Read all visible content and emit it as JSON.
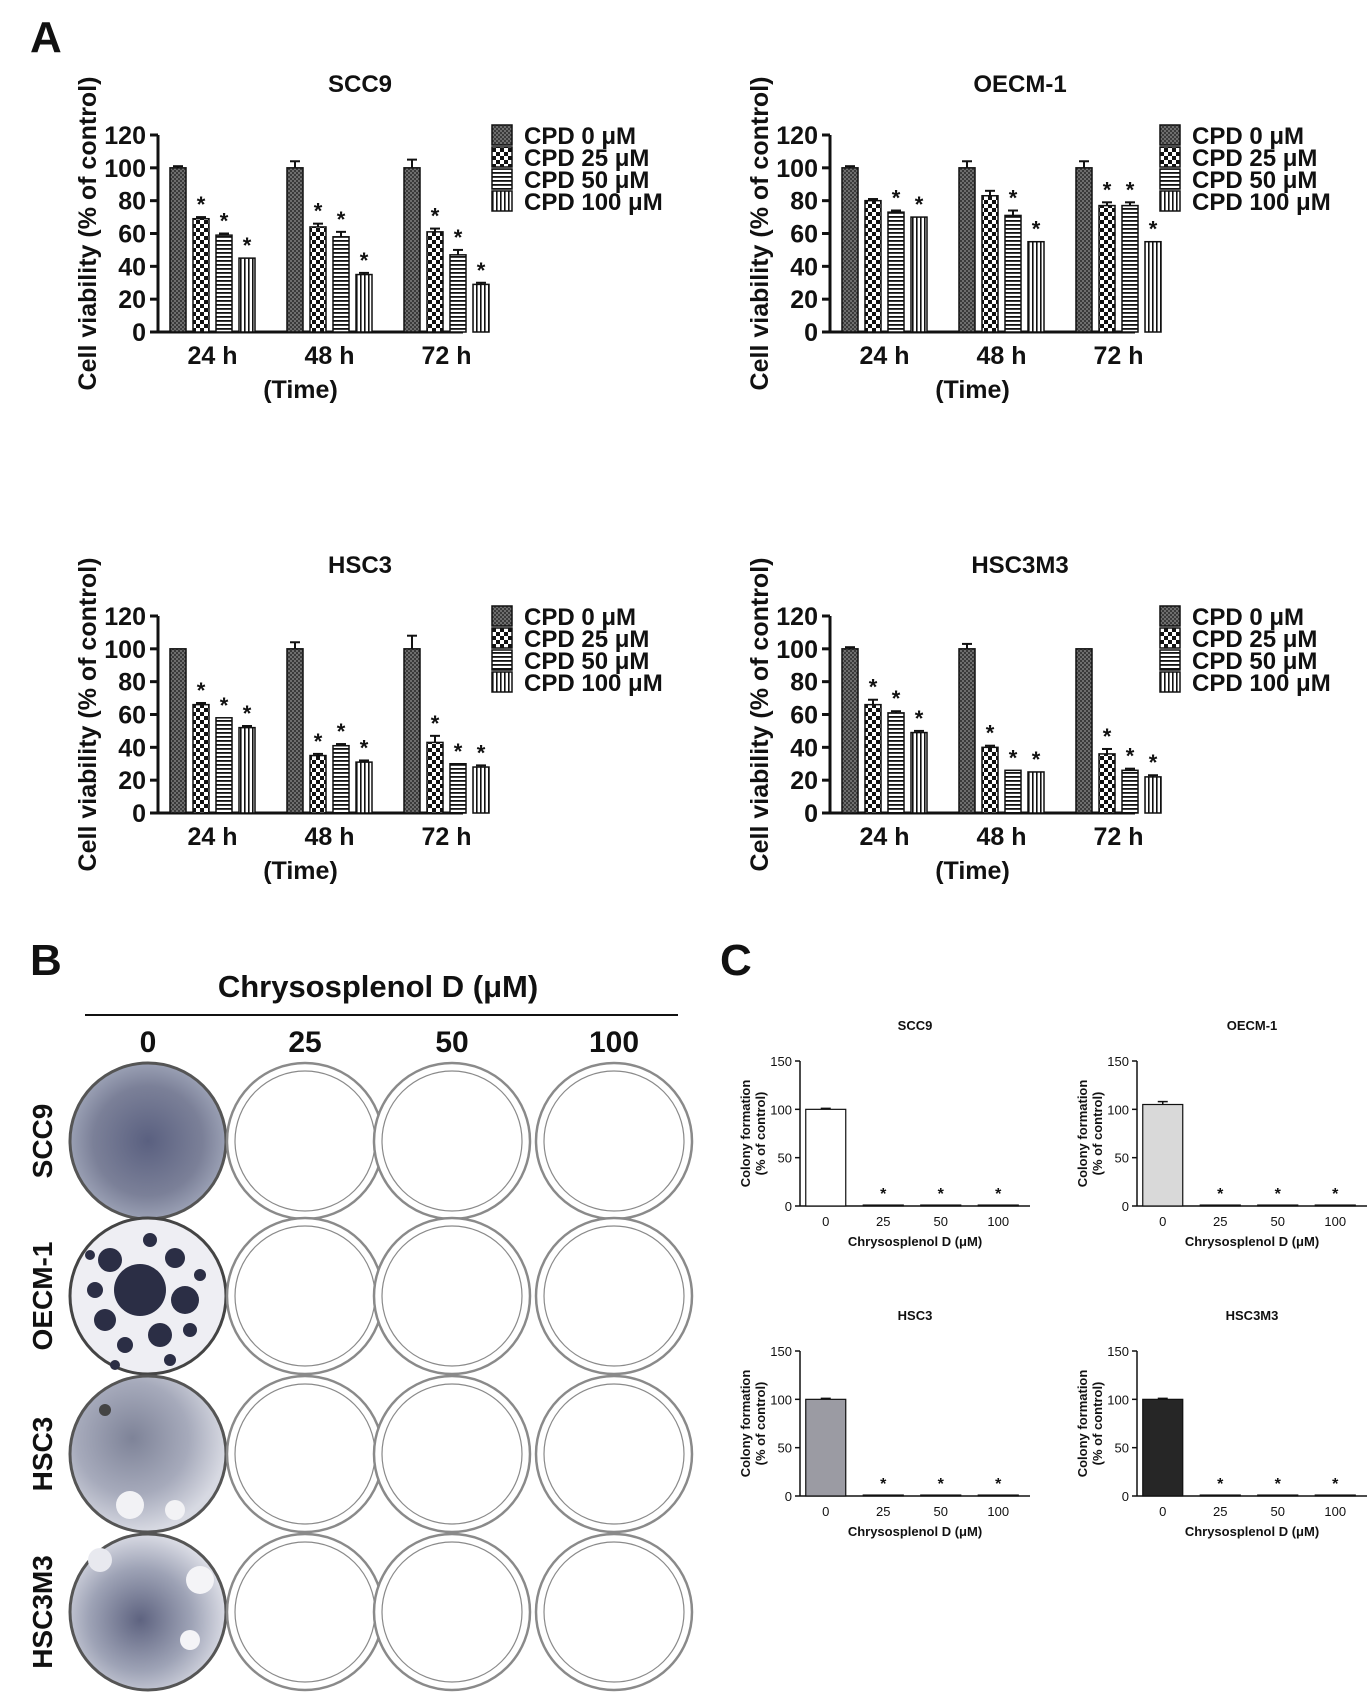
{
  "panels": {
    "A": {
      "letter": "A"
    },
    "B": {
      "letter": "B",
      "title": "Chrysosplenol D (μM)",
      "columns": [
        "0",
        "25",
        "50",
        "100"
      ],
      "rows": [
        "SCC9",
        "OECM-1",
        "HSC3",
        "HSC3M3"
      ]
    },
    "C": {
      "letter": "C"
    }
  },
  "chart_data": [
    {
      "type": "bar",
      "panel": "A",
      "title": "SCC9",
      "ylabel": "Cell viability (% of control)",
      "xlabel": "(Time)",
      "categories": [
        "24 h",
        "48 h",
        "72 h"
      ],
      "ylim": [
        0,
        120
      ],
      "yticks": [
        "0",
        "20",
        "40",
        "60",
        "80",
        "100",
        "120"
      ],
      "series": [
        {
          "name": "CPD 0 μM",
          "values": [
            100,
            100,
            100
          ],
          "errors": [
            1,
            4,
            5
          ],
          "sig": [
            false,
            false,
            false
          ]
        },
        {
          "name": "CPD 25 μM",
          "values": [
            69,
            64,
            61
          ],
          "errors": [
            1,
            2,
            2
          ],
          "sig": [
            true,
            true,
            true
          ]
        },
        {
          "name": "CPD 50 μM",
          "values": [
            59,
            58,
            47
          ],
          "errors": [
            1,
            3,
            3
          ],
          "sig": [
            true,
            true,
            true
          ]
        },
        {
          "name": "CPD 100 μM",
          "values": [
            45,
            35,
            29
          ],
          "errors": [
            0,
            1,
            1
          ],
          "sig": [
            true,
            true,
            true
          ]
        }
      ]
    },
    {
      "type": "bar",
      "panel": "A",
      "title": "OECM-1",
      "ylabel": "Cell viability (% of control)",
      "xlabel": "(Time)",
      "categories": [
        "24 h",
        "48 h",
        "72 h"
      ],
      "ylim": [
        0,
        120
      ],
      "yticks": [
        "0",
        "20",
        "40",
        "60",
        "80",
        "100",
        "120"
      ],
      "series": [
        {
          "name": "CPD 0 μM",
          "values": [
            100,
            100,
            100
          ],
          "errors": [
            1,
            4,
            4
          ],
          "sig": [
            false,
            false,
            false
          ]
        },
        {
          "name": "CPD 25 μM",
          "values": [
            80,
            83,
            77
          ],
          "errors": [
            1,
            3,
            2
          ],
          "sig": [
            false,
            false,
            true
          ]
        },
        {
          "name": "CPD 50 μM",
          "values": [
            73,
            71,
            77
          ],
          "errors": [
            1,
            3,
            2
          ],
          "sig": [
            true,
            true,
            true
          ]
        },
        {
          "name": "CPD 100 μM",
          "values": [
            70,
            55,
            55
          ],
          "errors": [
            0,
            0,
            0
          ],
          "sig": [
            true,
            true,
            true
          ]
        }
      ]
    },
    {
      "type": "bar",
      "panel": "A",
      "title": "HSC3",
      "ylabel": "Cell viability (% of control)",
      "xlabel": "(Time)",
      "categories": [
        "24 h",
        "48 h",
        "72 h"
      ],
      "ylim": [
        0,
        120
      ],
      "yticks": [
        "0",
        "20",
        "40",
        "60",
        "80",
        "100",
        "120"
      ],
      "series": [
        {
          "name": "CPD 0 μM",
          "values": [
            100,
            100,
            100
          ],
          "errors": [
            0,
            4,
            8
          ],
          "sig": [
            false,
            false,
            false
          ]
        },
        {
          "name": "CPD 25 μM",
          "values": [
            66,
            35,
            43
          ],
          "errors": [
            1,
            1,
            4
          ],
          "sig": [
            true,
            true,
            true
          ]
        },
        {
          "name": "CPD 50 μM",
          "values": [
            58,
            41,
            30
          ],
          "errors": [
            0,
            1,
            0
          ],
          "sig": [
            true,
            true,
            true
          ]
        },
        {
          "name": "CPD 100 μM",
          "values": [
            52,
            31,
            28
          ],
          "errors": [
            1,
            1,
            1
          ],
          "sig": [
            true,
            true,
            true
          ]
        }
      ]
    },
    {
      "type": "bar",
      "panel": "A",
      "title": "HSC3M3",
      "ylabel": "Cell viability (% of control)",
      "xlabel": "(Time)",
      "categories": [
        "24 h",
        "48 h",
        "72 h"
      ],
      "ylim": [
        0,
        120
      ],
      "yticks": [
        "0",
        "20",
        "40",
        "60",
        "80",
        "100",
        "120"
      ],
      "series": [
        {
          "name": "CPD 0 μM",
          "values": [
            100,
            100,
            100
          ],
          "errors": [
            1,
            3,
            0
          ],
          "sig": [
            false,
            false,
            false
          ]
        },
        {
          "name": "CPD 25 μM",
          "values": [
            66,
            40,
            36
          ],
          "errors": [
            3,
            1,
            3
          ],
          "sig": [
            true,
            true,
            true
          ]
        },
        {
          "name": "CPD 50 μM",
          "values": [
            61,
            26,
            26
          ],
          "errors": [
            1,
            0,
            1
          ],
          "sig": [
            true,
            true,
            true
          ]
        },
        {
          "name": "CPD 100 μM",
          "values": [
            49,
            25,
            22
          ],
          "errors": [
            1,
            0,
            1
          ],
          "sig": [
            true,
            true,
            true
          ]
        }
      ]
    },
    {
      "type": "bar",
      "panel": "C",
      "title": "SCC9",
      "ylabel": "Colony formation\n(% of control)",
      "xlabel": "Chrysosplenol D (μM)",
      "categories": [
        "0",
        "25",
        "50",
        "100"
      ],
      "ylim": [
        0,
        150
      ],
      "yticks": [
        "0",
        "50",
        "100",
        "150"
      ],
      "values": [
        100,
        1,
        1,
        1
      ],
      "errors": [
        1,
        0,
        0,
        0
      ],
      "sig": [
        false,
        true,
        true,
        true
      ],
      "bar_color": "#ffffff"
    },
    {
      "type": "bar",
      "panel": "C",
      "title": "OECM-1",
      "ylabel": "Colony formation\n(% of control)",
      "xlabel": "Chrysosplenol D (μM)",
      "categories": [
        "0",
        "25",
        "50",
        "100"
      ],
      "ylim": [
        0,
        150
      ],
      "yticks": [
        "0",
        "50",
        "100",
        "150"
      ],
      "values": [
        105,
        1,
        1,
        1
      ],
      "errors": [
        3,
        0,
        0,
        0
      ],
      "sig": [
        false,
        true,
        true,
        true
      ],
      "bar_color": "#d9d9d9"
    },
    {
      "type": "bar",
      "panel": "C",
      "title": "HSC3",
      "ylabel": "Colony formation\n(% of control)",
      "xlabel": "Chrysosplenol D (μM)",
      "categories": [
        "0",
        "25",
        "50",
        "100"
      ],
      "ylim": [
        0,
        150
      ],
      "yticks": [
        "0",
        "50",
        "100",
        "150"
      ],
      "values": [
        100,
        1,
        1,
        1
      ],
      "errors": [
        1,
        0,
        0,
        0
      ],
      "sig": [
        false,
        true,
        true,
        true
      ],
      "bar_color": "#9b9ba3"
    },
    {
      "type": "bar",
      "panel": "C",
      "title": "HSC3M3",
      "ylabel": "Colony formation\n(% of control)",
      "xlabel": "Chrysosplenol D (μM)",
      "categories": [
        "0",
        "25",
        "50",
        "100"
      ],
      "ylim": [
        0,
        150
      ],
      "yticks": [
        "0",
        "50",
        "100",
        "150"
      ],
      "values": [
        100,
        1,
        1,
        1
      ],
      "errors": [
        1,
        0,
        0,
        0
      ],
      "sig": [
        false,
        true,
        true,
        true
      ],
      "bar_color": "#262626"
    }
  ]
}
